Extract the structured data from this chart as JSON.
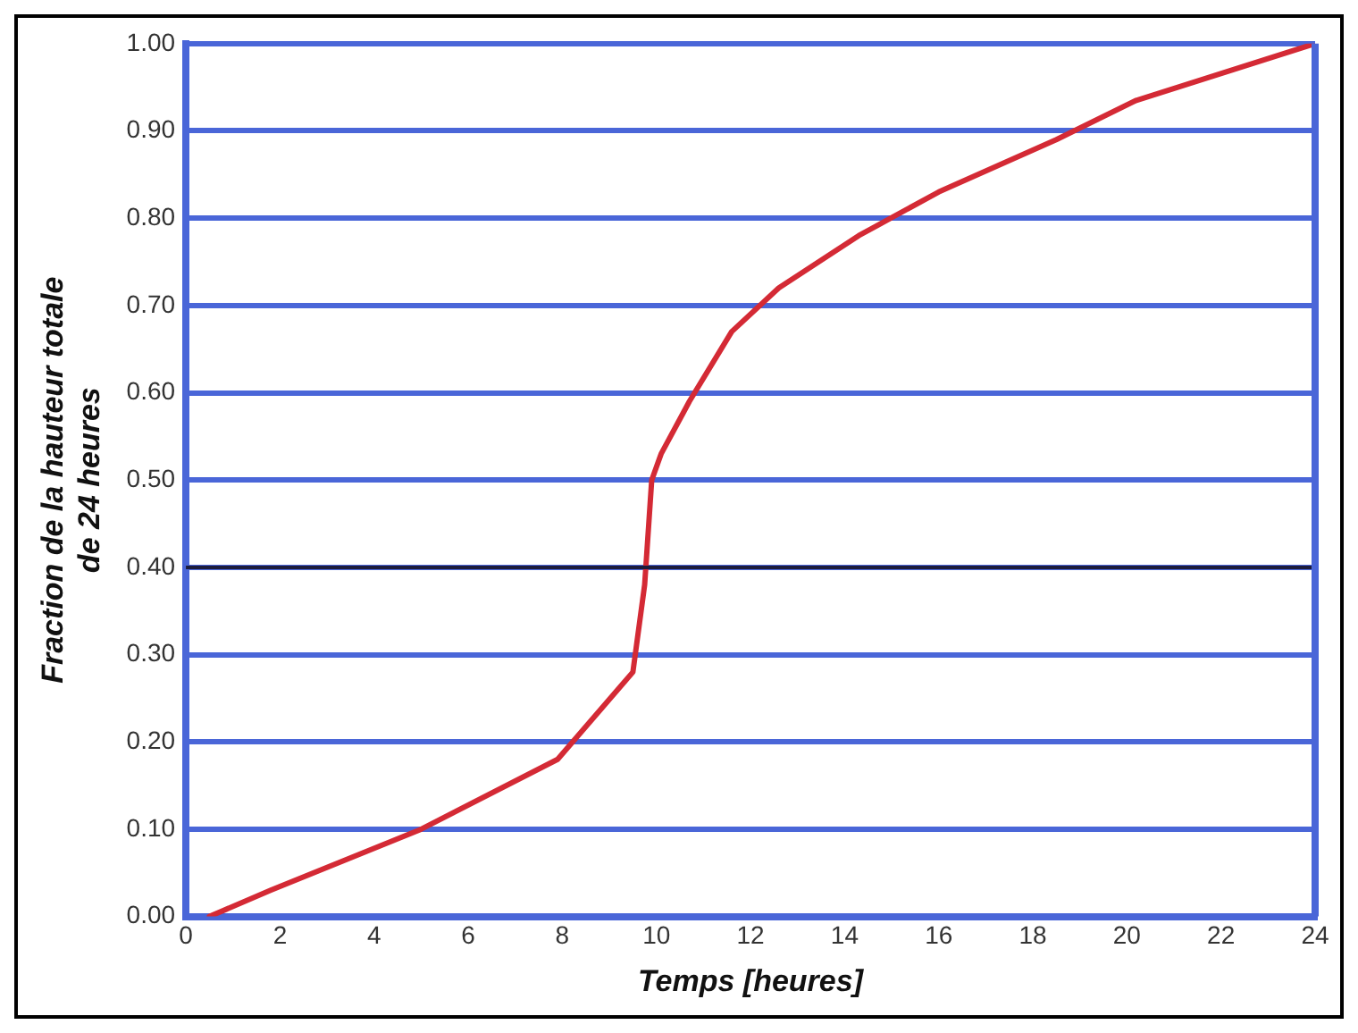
{
  "chart_data": {
    "type": "line",
    "xlabel": "Temps [heures]",
    "ylabel": "Fraction de la hauteur totale de 24 heures",
    "x": [
      0.5,
      1.8,
      5,
      7.9,
      9.5,
      9.75,
      9.9,
      10.1,
      10.7,
      11.6,
      12.6,
      14.3,
      16,
      18.5,
      20.2,
      24
    ],
    "series": [
      {
        "color": "#d42a35",
        "values": [
          0,
          0.03,
          0.1,
          0.18,
          0.28,
          0.38,
          0.5,
          0.53,
          0.59,
          0.67,
          0.72,
          0.78,
          0.83,
          0.89,
          0.935,
          1.0
        ]
      }
    ],
    "xlim": [
      0,
      24
    ],
    "xticks": [
      0,
      2,
      4,
      6,
      8,
      10,
      12,
      14,
      16,
      18,
      20,
      22,
      24
    ],
    "ylim": [
      0,
      1
    ],
    "yticks": [
      {
        "value": 0,
        "label": "0.00"
      },
      {
        "value": 0.1,
        "label": "0.10"
      },
      {
        "value": 0.2,
        "label": "0.20"
      },
      {
        "value": 0.3,
        "label": "0.30"
      },
      {
        "value": 0.4,
        "label": "0.40"
      },
      {
        "value": 0.5,
        "label": "0.50"
      },
      {
        "value": 0.6,
        "label": "0.60"
      },
      {
        "value": 0.7,
        "label": "0.70"
      },
      {
        "value": 0.8,
        "label": "0.80"
      },
      {
        "value": 0.9,
        "label": "0.90"
      },
      {
        "value": 1,
        "label": "1.00"
      }
    ],
    "grid": "y",
    "legend": false,
    "marker": "none",
    "line_style": "solid",
    "ref_lines": [
      {
        "axis": "y",
        "value": 0.4,
        "color": "#1c1c3c"
      }
    ]
  }
}
